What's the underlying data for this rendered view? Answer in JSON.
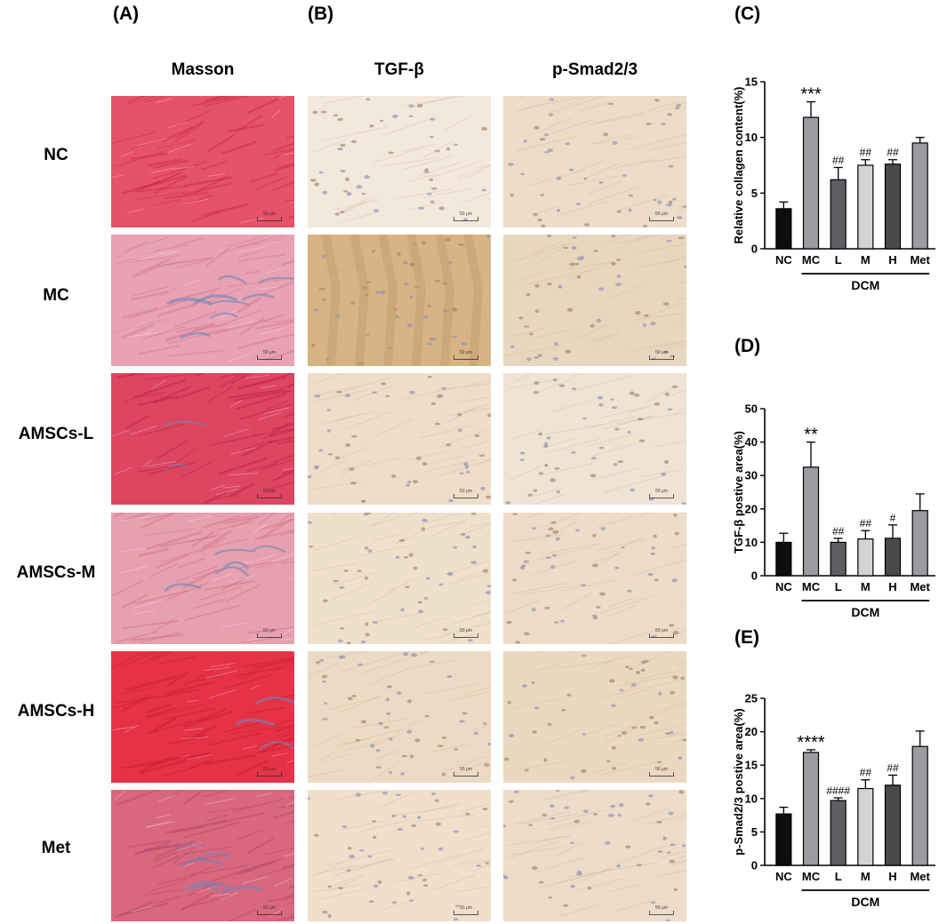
{
  "panels": {
    "A": "(A)",
    "B": "(B)",
    "C": "(C)",
    "D": "(D)",
    "E": "(E)"
  },
  "columns": [
    "Masson",
    "TGF-β",
    "p-Smad2/3"
  ],
  "rows": [
    "NC",
    "MC",
    "AMSCs-L",
    "AMSCs-M",
    "AMSCs-H",
    "Met"
  ],
  "scale_bar_label": "50 μm",
  "stain_colors": {
    "masson": [
      {
        "base": "#e5526a",
        "fiber": "#c42a47",
        "blue": 0.0
      },
      {
        "base": "#e8a2b3",
        "fiber": "#d3788f",
        "blue": 0.55
      },
      {
        "base": "#dd4561",
        "fiber": "#b82240",
        "blue": 0.12
      },
      {
        "base": "#e7a0b0",
        "fiber": "#cf7188",
        "blue": 0.35
      },
      {
        "base": "#e63246",
        "fiber": "#c81a2c",
        "blue": 0.18
      },
      {
        "base": "#d9687f",
        "fiber": "#b54a6b",
        "blue": 0.4
      }
    ],
    "tgf": [
      "#f3e8dc",
      "#d8b485",
      "#eeddc9",
      "#efe0cc",
      "#ecdac4",
      "#efdfcb"
    ],
    "smad": [
      "#ecdcc8",
      "#e9d6bf",
      "#efe3d3",
      "#eddcc7",
      "#ebd8c1",
      "#ecdcc9"
    ]
  },
  "chart_data": [
    {
      "type": "bar",
      "panel": "(C)",
      "categories": [
        "NC",
        "MC",
        "L",
        "M",
        "H",
        "Met"
      ],
      "values": [
        3.6,
        11.8,
        6.2,
        7.5,
        7.6,
        9.5
      ],
      "errors": [
        0.6,
        1.4,
        1.1,
        0.5,
        0.4,
        0.5
      ],
      "annotations": [
        "",
        "***",
        "##",
        "##",
        "##",
        ""
      ],
      "bar_colors": [
        "#0d0d0d",
        "#9c9ca0",
        "#5f5f63",
        "#d3d3d6",
        "#4a4a4d",
        "#9c9ca0"
      ],
      "ylabel": "Relative collagen content(%)",
      "ylim": [
        0,
        15
      ],
      "yticks": [
        0,
        5,
        10,
        15
      ],
      "group_label": "DCM"
    },
    {
      "type": "bar",
      "panel": "(D)",
      "categories": [
        "NC",
        "MC",
        "L",
        "M",
        "H",
        "Met"
      ],
      "values": [
        10.0,
        32.5,
        10.0,
        11.0,
        11.2,
        19.5
      ],
      "errors": [
        2.7,
        7.5,
        1.2,
        2.5,
        4.0,
        5.0
      ],
      "annotations": [
        "",
        "**",
        "##",
        "##",
        "#",
        ""
      ],
      "bar_colors": [
        "#0d0d0d",
        "#9c9ca0",
        "#5f5f63",
        "#d3d3d6",
        "#4a4a4d",
        "#9c9ca0"
      ],
      "ylabel": "TGF-β postive area(%)",
      "ylim": [
        0,
        50
      ],
      "yticks": [
        0,
        10,
        20,
        30,
        40,
        50
      ],
      "group_label": "DCM"
    },
    {
      "type": "bar",
      "panel": "(E)",
      "categories": [
        "NC",
        "MC",
        "L",
        "M",
        "H",
        "Met"
      ],
      "values": [
        7.7,
        16.9,
        9.7,
        11.5,
        12.0,
        17.8
      ],
      "errors": [
        1.0,
        0.4,
        0.4,
        1.3,
        1.5,
        2.3
      ],
      "annotations": [
        "",
        "****",
        "####",
        "##",
        "##",
        ""
      ],
      "bar_colors": [
        "#0d0d0d",
        "#9c9ca0",
        "#5f5f63",
        "#d3d3d6",
        "#4a4a4d",
        "#9c9ca0"
      ],
      "ylabel": "p-Smad2/3 postive area(%)",
      "ylim": [
        0,
        25
      ],
      "yticks": [
        0,
        5,
        10,
        15,
        20,
        25
      ],
      "group_label": "DCM"
    }
  ]
}
